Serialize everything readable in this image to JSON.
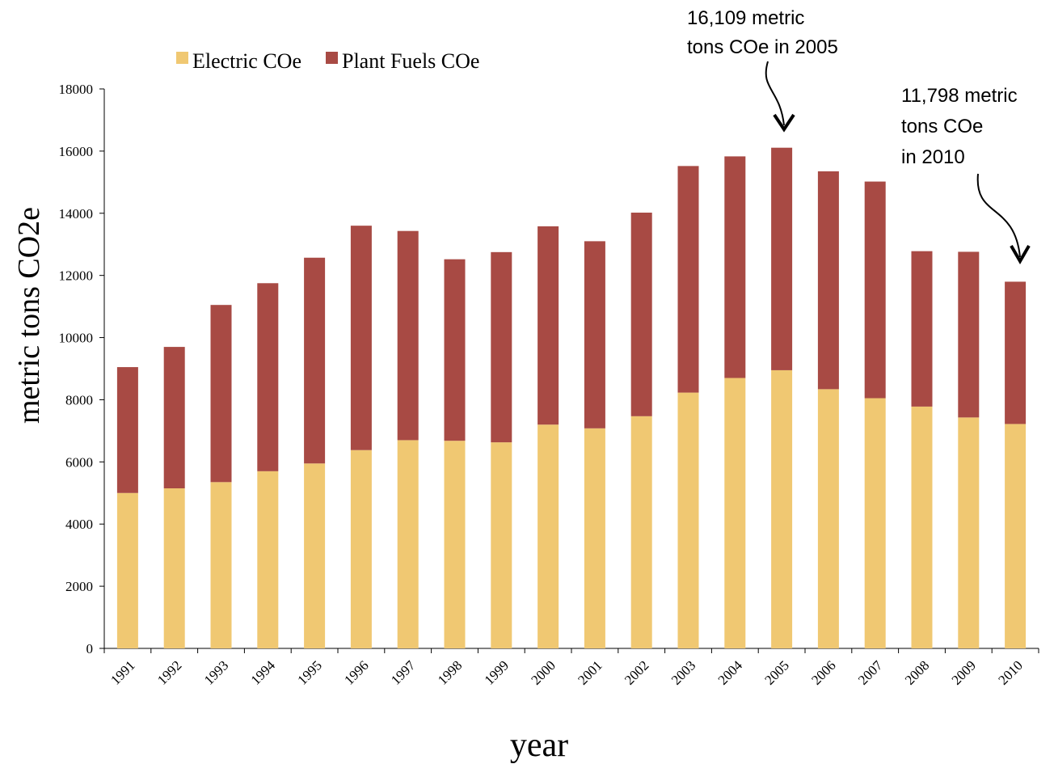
{
  "chart_data": {
    "type": "stacked_bar",
    "categories": [
      "1991",
      "1992",
      "1993",
      "1994",
      "1995",
      "1996",
      "1997",
      "1998",
      "1999",
      "2000",
      "2001",
      "2002",
      "2003",
      "2004",
      "2005",
      "2006",
      "2007",
      "2008",
      "2009",
      "2010"
    ],
    "series": [
      {
        "name": "Electric COe",
        "color": "#f0c872",
        "values": [
          5000,
          5150,
          5350,
          5700,
          5950,
          6380,
          6700,
          6680,
          6630,
          7200,
          7080,
          7470,
          8230,
          8700,
          8950,
          8340,
          8050,
          7780,
          7430,
          7220
        ]
      },
      {
        "name": "Plant Fuels COe",
        "color": "#a84a44",
        "values": [
          4050,
          4550,
          5700,
          6050,
          6620,
          7220,
          6730,
          5840,
          6120,
          6380,
          6020,
          6550,
          7290,
          7130,
          7159,
          7010,
          6970,
          5000,
          5330,
          4578
        ]
      }
    ],
    "ylim": [
      0,
      18000
    ],
    "yticks": [
      0,
      2000,
      4000,
      6000,
      8000,
      10000,
      12000,
      14000,
      16000,
      18000
    ],
    "y_label": "metric tons CO2e",
    "x_label": "year",
    "legend": "top-left",
    "annotations": [
      {
        "lines": [
          "16,109 metric",
          "tons COe in 2005"
        ]
      },
      {
        "lines": [
          "11,798 metric",
          "tons COe",
          "in 2010"
        ]
      }
    ]
  }
}
